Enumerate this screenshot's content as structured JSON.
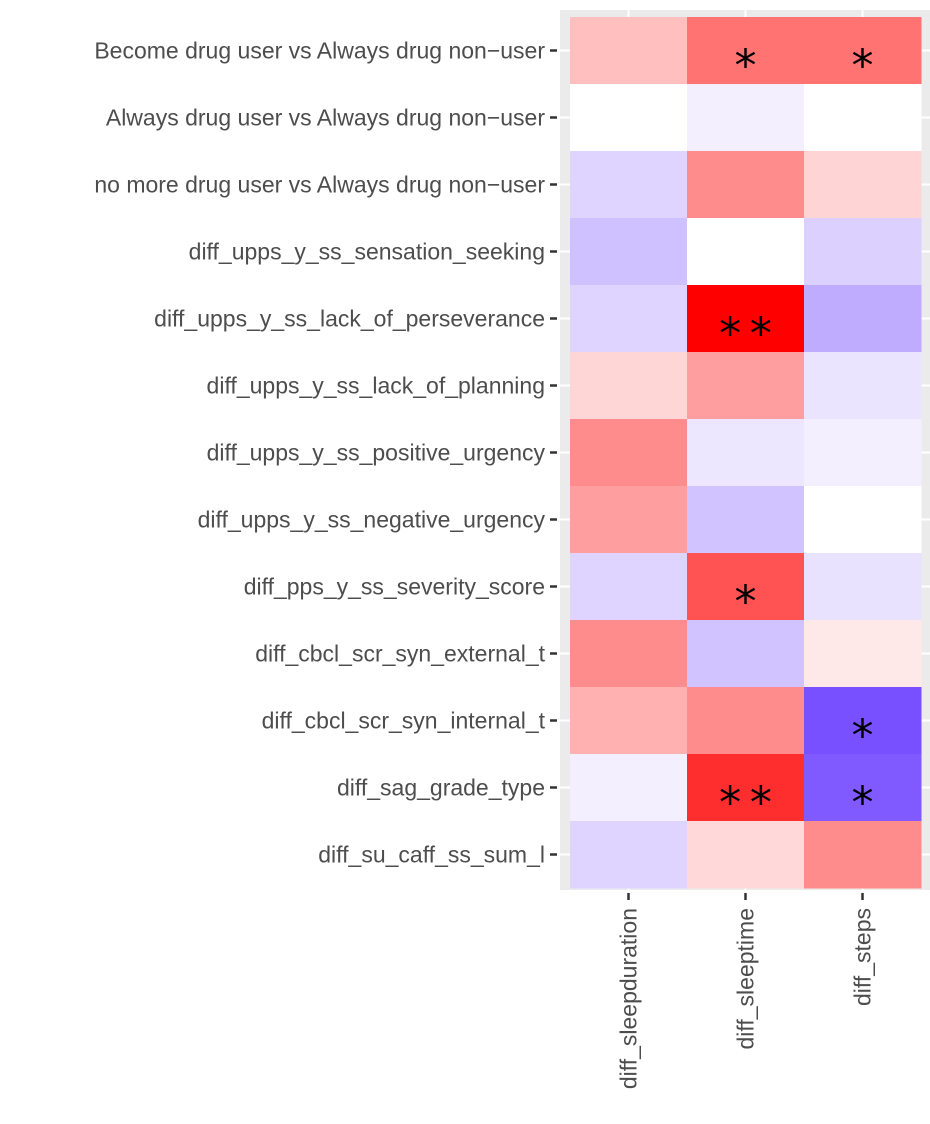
{
  "chart_data": {
    "type": "heatmap",
    "x_categories": [
      "diff_sleepduration",
      "diff_sleeptime",
      "diff_steps"
    ],
    "y_categories": [
      "Become drug user vs Always drug non−user",
      "Always drug user vs Always drug non−user",
      "no more drug user vs Always drug non−user",
      "diff_upps_y_ss_sensation_seeking",
      "diff_upps_y_ss_lack_of_perseverance",
      "diff_upps_y_ss_lack_of_planning",
      "diff_upps_y_ss_positive_urgency",
      "diff_upps_y_ss_negative_urgency",
      "diff_pps_y_ss_severity_score",
      "diff_cbcl_scr_syn_external_t",
      "diff_cbcl_scr_syn_internal_t",
      "diff_sag_grade_type",
      "diff_su_caff_ss_sum_l"
    ],
    "values": [
      [
        0.25,
        0.55,
        0.55
      ],
      [
        0.0,
        -0.08,
        0.0
      ],
      [
        -0.22,
        0.45,
        0.17
      ],
      [
        -0.32,
        0.0,
        -0.24
      ],
      [
        -0.22,
        1.0,
        -0.43
      ],
      [
        0.16,
        0.38,
        -0.14
      ],
      [
        0.45,
        -0.13,
        -0.08
      ],
      [
        0.38,
        -0.31,
        0.0
      ],
      [
        -0.22,
        0.68,
        -0.15
      ],
      [
        0.45,
        -0.31,
        0.09
      ],
      [
        0.31,
        0.45,
        -0.9
      ],
      [
        -0.08,
        0.82,
        -0.85
      ],
      [
        -0.22,
        0.15,
        0.45
      ]
    ],
    "annotations": [
      [
        "",
        "*",
        "*"
      ],
      [
        "",
        "",
        ""
      ],
      [
        "",
        "",
        ""
      ],
      [
        "",
        "",
        ""
      ],
      [
        "",
        "**",
        ""
      ],
      [
        "",
        "",
        ""
      ],
      [
        "",
        "",
        ""
      ],
      [
        "",
        "",
        ""
      ],
      [
        "",
        "*",
        ""
      ],
      [
        "",
        "",
        ""
      ],
      [
        "",
        "",
        "*"
      ],
      [
        "",
        "**",
        "*"
      ],
      [
        "",
        "",
        ""
      ]
    ],
    "color_scale": {
      "low": "#6a3dff",
      "mid": "#ffffff",
      "high": "#ff0000"
    },
    "title": "",
    "xlabel": "",
    "ylabel": "",
    "legend": "none",
    "grid": true,
    "panel_background": "#ebebeb"
  }
}
